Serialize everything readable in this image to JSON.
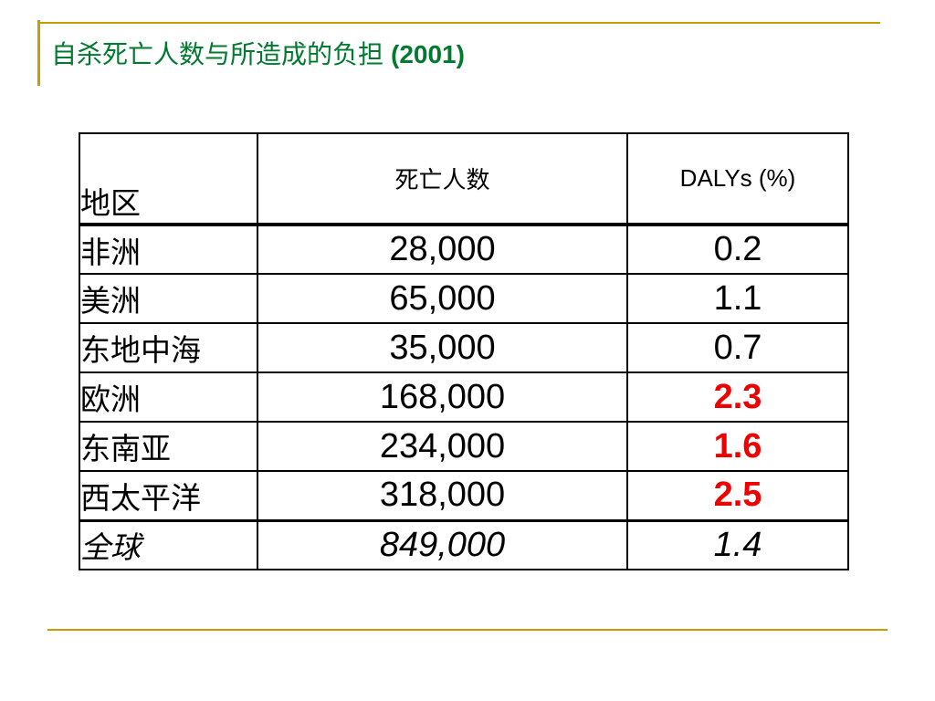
{
  "title": {
    "text": "自杀死亡人数与所造成的负担",
    "year": "(2001)"
  },
  "colors": {
    "accent": "#cc9900",
    "title": "#007a2e",
    "highlight": "#ee0000"
  },
  "table": {
    "headers": {
      "region": "地区",
      "deaths": "死亡人数",
      "dalys": "DALYs (%)"
    },
    "rows": [
      {
        "region": "非洲",
        "deaths": "28,000",
        "dalys": "0.2",
        "highlight": false
      },
      {
        "region": "美洲",
        "deaths": "65,000",
        "dalys": "1.1",
        "highlight": false
      },
      {
        "region": "东地中海",
        "deaths": "35,000",
        "dalys": "0.7",
        "highlight": false
      },
      {
        "region": "欧洲",
        "deaths": "168,000",
        "dalys": "2.3",
        "highlight": true
      },
      {
        "region": "东南亚",
        "deaths": "234,000",
        "dalys": "1.6",
        "highlight": true
      },
      {
        "region": "西太平洋",
        "deaths": "318,000",
        "dalys": "2.5",
        "highlight": true
      }
    ],
    "total": {
      "region": "全球",
      "deaths": "849,000",
      "dalys": "1.4"
    }
  }
}
